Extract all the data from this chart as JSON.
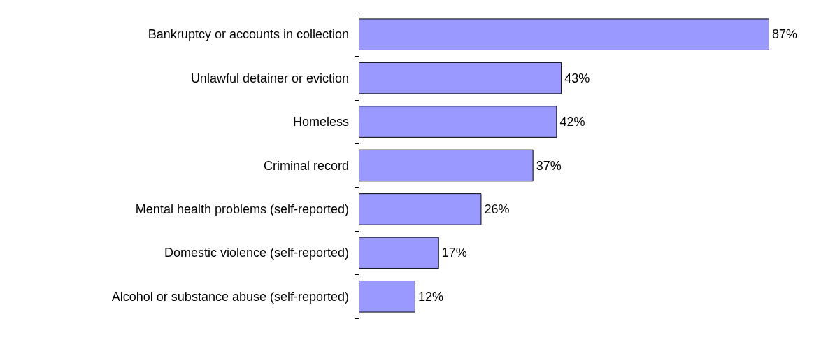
{
  "chart_data": {
    "type": "bar",
    "orientation": "horizontal",
    "categories": [
      "Bankruptcy or accounts in collection",
      "Unlawful detainer or eviction",
      "Homeless",
      "Criminal record",
      "Mental health problems (self-reported)",
      "Domestic violence (self-reported)",
      "Alcohol or substance abuse (self-reported)"
    ],
    "values": [
      87,
      43,
      42,
      37,
      26,
      17,
      12
    ],
    "value_labels": [
      "87%",
      "43%",
      "42%",
      "37%",
      "26%",
      "17%",
      "12%"
    ],
    "color": "#9999ff"
  }
}
